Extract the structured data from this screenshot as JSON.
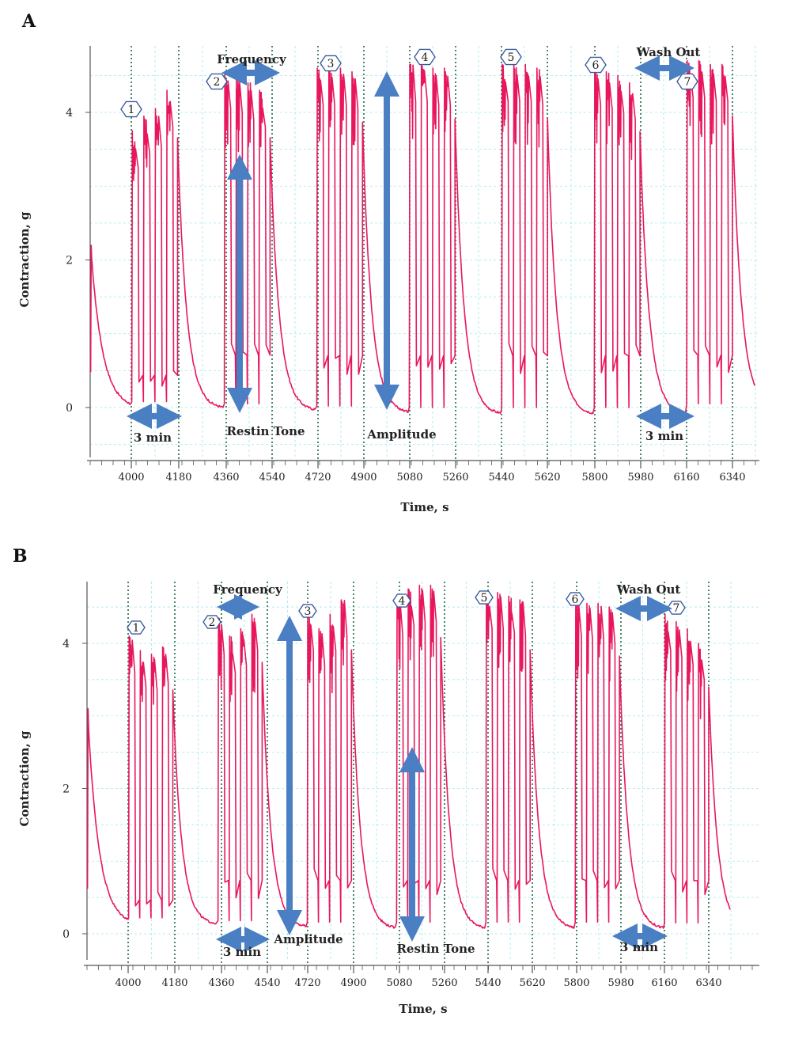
{
  "chart_data": [
    {
      "panel": "A",
      "type": "line",
      "xlabel": "Time, s",
      "ylabel": "Contraction, g",
      "xticks": [
        4000,
        4180,
        4360,
        4540,
        4720,
        4900,
        5080,
        5260,
        5440,
        5620,
        5800,
        5980,
        6160,
        6340
      ],
      "yticks": [
        0,
        2,
        4
      ],
      "xlim": [
        3840,
        6440
      ],
      "ylim": [
        -0.65,
        4.9
      ],
      "series_color": "#e8175d",
      "stages": [
        {
          "label": "1",
          "start": 4000,
          "end": 4180,
          "peaks": [
            3.75,
            3.95,
            4.05,
            4.3
          ],
          "rest": -0.02
        },
        {
          "label": "2",
          "start": 4360,
          "end": 4540,
          "peaks": [
            4.55,
            4.5,
            4.4,
            4.3
          ],
          "rest": -0.05
        },
        {
          "label": "3",
          "start": 4720,
          "end": 4900,
          "peaks": [
            4.6,
            4.6,
            4.6,
            4.55
          ],
          "rest": -0.08
        },
        {
          "label": "4",
          "start": 5080,
          "end": 5260,
          "peaks": [
            4.65,
            4.65,
            4.6,
            4.6
          ],
          "rest": -0.1
        },
        {
          "label": "5",
          "start": 5440,
          "end": 5620,
          "peaks": [
            4.65,
            4.65,
            4.65,
            4.6
          ],
          "rest": -0.1
        },
        {
          "label": "6",
          "start": 5800,
          "end": 5980,
          "peaks": [
            4.6,
            4.55,
            4.5,
            4.4
          ],
          "rest": -0.1
        },
        {
          "label": "7",
          "start": 6160,
          "end": 6340,
          "peaks": [
            4.7,
            4.7,
            4.65,
            4.65
          ],
          "rest": -0.05
        }
      ],
      "annotations": {
        "frequency": "Frequency",
        "restin_tone": "Restin Tone",
        "amplitude": "Amplitude",
        "wash_out": "Wash Out",
        "three_min_left": "3 min",
        "three_min_right": "3 min"
      }
    },
    {
      "panel": "B",
      "type": "line",
      "xlabel": "Time, s",
      "ylabel": "Contraction, g",
      "xticks": [
        4000,
        4180,
        4360,
        4540,
        4720,
        4900,
        5080,
        5260,
        5440,
        5620,
        5800,
        5980,
        6160,
        6340
      ],
      "yticks": [
        0,
        2,
        4
      ],
      "xlim": [
        3840,
        6440
      ],
      "ylim": [
        -0.4,
        4.9
      ],
      "series_color": "#e8175d",
      "stages": [
        {
          "label": "1",
          "start": 4000,
          "end": 4180,
          "peaks": [
            4.1,
            3.9,
            3.85,
            3.95
          ],
          "rest": 0.12
        },
        {
          "label": "2",
          "start": 4360,
          "end": 4540,
          "peaks": [
            4.35,
            4.1,
            4.2,
            4.4
          ],
          "rest": 0.08
        },
        {
          "label": "3",
          "start": 4720,
          "end": 4900,
          "peaks": [
            4.4,
            4.2,
            4.4,
            4.6
          ],
          "rest": 0.06
        },
        {
          "label": "4",
          "start": 5080,
          "end": 5260,
          "peaks": [
            4.6,
            4.75,
            4.8,
            4.8
          ],
          "rest": 0.06
        },
        {
          "label": "5",
          "start": 5440,
          "end": 5620,
          "peaks": [
            4.7,
            4.7,
            4.65,
            4.6
          ],
          "rest": 0.06
        },
        {
          "label": "6",
          "start": 5800,
          "end": 5980,
          "peaks": [
            4.6,
            4.55,
            4.55,
            4.5
          ],
          "rest": 0.06
        },
        {
          "label": "7",
          "start": 6160,
          "end": 6340,
          "peaks": [
            4.4,
            4.3,
            4.2,
            4.0
          ],
          "rest": 0.05
        }
      ],
      "annotations": {
        "frequency": "Frequency",
        "amplitude": "Amplitude",
        "restin_tone": "Restin Tone",
        "wash_out": "Wash Out",
        "three_min_left": "3 min",
        "three_min_right": "3 min"
      }
    }
  ],
  "colors": {
    "trace": "#e8175d",
    "arrow": "#4a7fc4",
    "grid": "#9fe6f0",
    "marker_line": "#1f6b3a",
    "axis": "#555555"
  }
}
